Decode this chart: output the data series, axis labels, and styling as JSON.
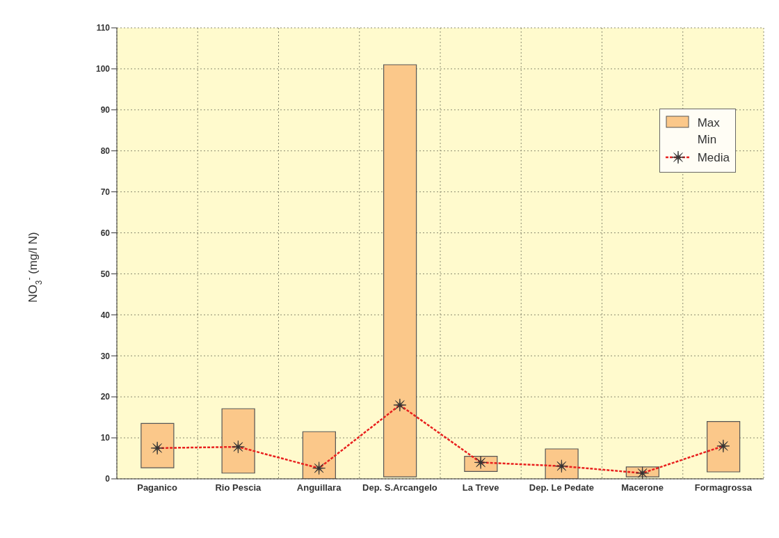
{
  "chart_data": {
    "type": "bar",
    "ylabel": "NO$_{3}$$^{-}$ (mg/l N)",
    "categories": [
      "Paganico",
      "Rio Pescia",
      "Anguillara",
      "Dep. S.Arcangelo",
      "La Treve",
      "Dep. Le Pedate",
      "Macerone",
      "Formagrossa"
    ],
    "series": [
      {
        "name": "Max\nMin",
        "color": "#fbc88a",
        "base": [
          2.7,
          1.4,
          0,
          0.5,
          1.8,
          0,
          0.5,
          1.7
        ],
        "values": [
          10.8,
          15.7,
          11.5,
          100.5,
          3.7,
          7.3,
          2.4,
          12.3
        ]
      },
      {
        "name": "Media",
        "type": "line",
        "color": "#e8201e",
        "marker": "star",
        "line_style": "dotted",
        "values": [
          7.5,
          7.8,
          2.6,
          18,
          4.0,
          3.1,
          1.4,
          8.0
        ]
      }
    ],
    "ylim": [
      0,
      110
    ],
    "yticks": [
      0,
      10,
      20,
      30,
      40,
      50,
      60,
      70,
      80,
      90,
      100,
      110
    ],
    "grid": true,
    "legend": "top right"
  }
}
